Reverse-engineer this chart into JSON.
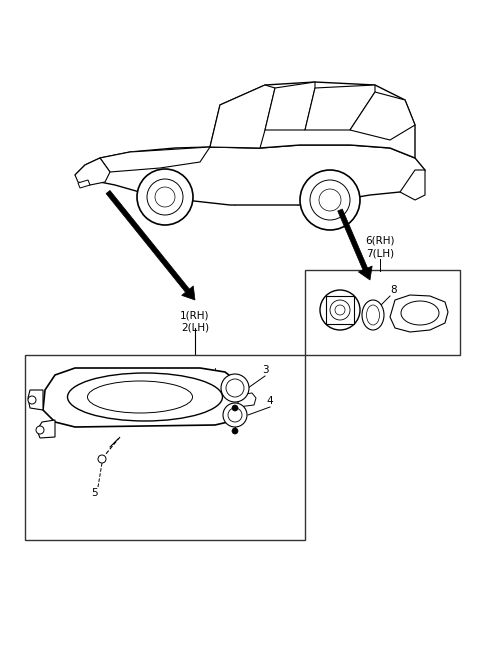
{
  "background_color": "#ffffff",
  "line_color": "#000000",
  "box_line_color": "#333333",
  "label_fontsize": 7.5,
  "labels": {
    "1_2": "1(RH)\n2(LH)",
    "3": "3",
    "4": "4",
    "5": "5",
    "6_7": "6(RH)\n7(LH)",
    "8": "8"
  }
}
